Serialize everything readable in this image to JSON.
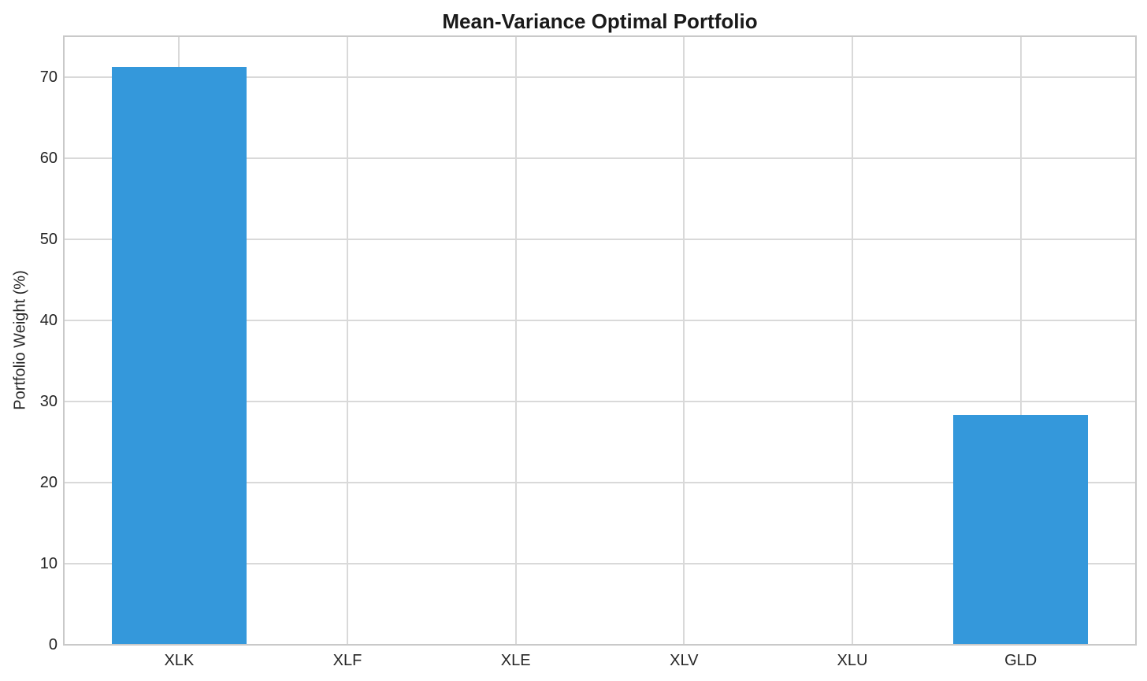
{
  "chart_data": {
    "type": "bar",
    "title": "Mean-Variance Optimal Portfolio",
    "xlabel": "",
    "ylabel": "Portfolio Weight (%)",
    "categories": [
      "XLK",
      "XLF",
      "XLE",
      "XLV",
      "XLU",
      "GLD"
    ],
    "values": [
      71.3,
      0,
      0,
      0,
      0,
      28.4
    ],
    "yticks": [
      0,
      10,
      20,
      30,
      40,
      50,
      60,
      70
    ],
    "ylim": [
      0,
      75.1
    ],
    "xlim": [
      -0.685,
      5.685
    ],
    "bar_width_frac": 0.8,
    "grid": true,
    "legend": "none",
    "colors": {
      "bar": "#3498db",
      "grid": "#d9d9d9",
      "spine": "#c9c9c9",
      "text": "#262626",
      "title": "#1a1a1a",
      "background": "#ffffff"
    }
  }
}
